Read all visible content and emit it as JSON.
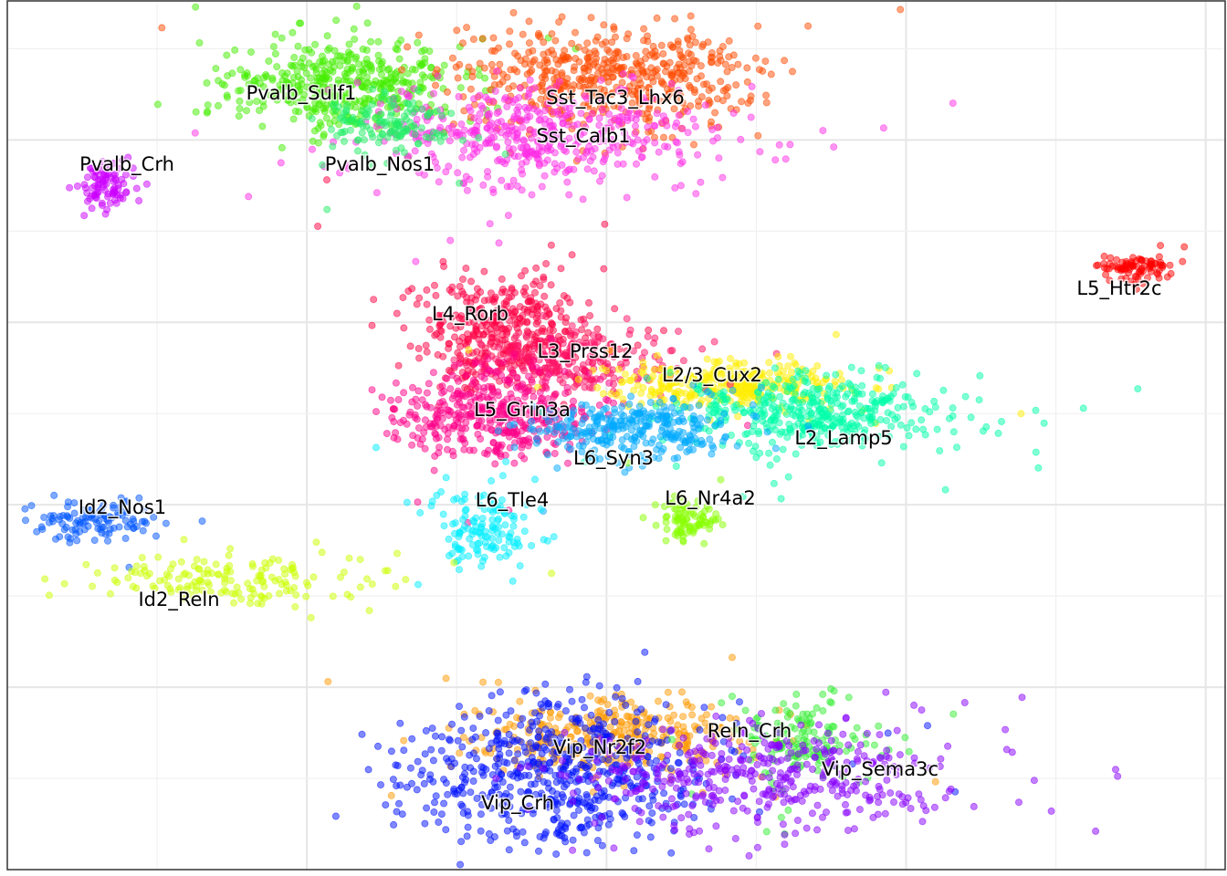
{
  "chart_data": {
    "type": "scatter",
    "title": "",
    "xlabel": "",
    "ylabel": "",
    "xlim": [
      0,
      100
    ],
    "ylim": [
      0,
      100
    ],
    "grid": true,
    "legend": "none",
    "clusters": [
      {
        "name": "Pvalb_Sulf1",
        "color": "#44ee00",
        "center": [
          27.3,
          90.5
        ],
        "spread": [
          4.5,
          2.6
        ],
        "count": 420
      },
      {
        "name": "Sst_Tac3_Lhx6",
        "color": "#ff4a00",
        "center": [
          49.5,
          91.0
        ],
        "spread": [
          6.0,
          3.0
        ],
        "count": 520
      },
      {
        "name": "Sst_Calb1",
        "color": "#ff2ee6",
        "center": [
          43.5,
          84.6
        ],
        "spread": [
          7.0,
          2.8
        ],
        "count": 480
      },
      {
        "name": "Pvalb_Nos1",
        "color": "#22ee66",
        "center": [
          31.5,
          85.8
        ],
        "spread": [
          2.8,
          1.7
        ],
        "count": 140
      },
      {
        "name": "Pvalb_Crh",
        "color": "#cc00ff",
        "center": [
          7.9,
          78.5
        ],
        "spread": [
          1.0,
          1.2
        ],
        "count": 90
      },
      {
        "name": "L5_Htr2c",
        "color": "#ff0000",
        "center": [
          93.0,
          69.2
        ],
        "spread": [
          1.4,
          0.8
        ],
        "count": 90
      },
      {
        "name": "L4_Rorb",
        "color": "#ff0044",
        "center": [
          41.0,
          61.8
        ],
        "spread": [
          3.6,
          3.2
        ],
        "count": 420
      },
      {
        "name": "L3_Prss12",
        "color": "#ff1166",
        "center": [
          46.5,
          58.6
        ],
        "spread": [
          3.5,
          1.8
        ],
        "count": 220
      },
      {
        "name": "L2/3_Cux2",
        "color": "#ffee00",
        "center": [
          58.5,
          55.6
        ],
        "spread": [
          5.0,
          1.4
        ],
        "count": 330
      },
      {
        "name": "L5_Grin3a",
        "color": "#ff0088",
        "center": [
          40.0,
          52.4
        ],
        "spread": [
          3.8,
          2.6
        ],
        "count": 420
      },
      {
        "name": "L2_Lamp5",
        "color": "#00ffaa",
        "center": [
          66.0,
          52.5
        ],
        "spread": [
          5.5,
          2.2
        ],
        "count": 420
      },
      {
        "name": "L6_Syn3",
        "color": "#00aaff",
        "center": [
          51.5,
          50.5
        ],
        "spread": [
          4.0,
          1.6
        ],
        "count": 300
      },
      {
        "name": "L6_Nr4a2",
        "color": "#88ff00",
        "center": [
          55.9,
          40.2
        ],
        "spread": [
          1.2,
          1.2
        ],
        "count": 90
      },
      {
        "name": "L6_Tle4",
        "color": "#00eeff",
        "center": [
          38.9,
          39.4
        ],
        "spread": [
          2.0,
          2.4
        ],
        "count": 140
      },
      {
        "name": "Id2_Nos1",
        "color": "#0055ff",
        "center": [
          7.6,
          40.0
        ],
        "spread": [
          2.6,
          1.2
        ],
        "count": 110
      },
      {
        "name": "Id2_Reln",
        "color": "#ccff00",
        "center": [
          18.5,
          33.4
        ],
        "spread": [
          5.5,
          1.6
        ],
        "count": 160
      },
      {
        "name": "Vip_Nr2f2",
        "color": "#ff9900",
        "center": [
          49.0,
          15.0
        ],
        "spread": [
          5.5,
          2.2
        ],
        "count": 360
      },
      {
        "name": "Vip_Crh",
        "color": "#0011ff",
        "center": [
          45.0,
          11.0
        ],
        "spread": [
          6.0,
          4.2
        ],
        "count": 600
      },
      {
        "name": "Reln_Crh",
        "color": "#33ee33",
        "center": [
          65.0,
          14.8
        ],
        "spread": [
          2.6,
          2.4
        ],
        "count": 150
      },
      {
        "name": "Vip_Sema3c",
        "color": "#8800ff",
        "center": [
          62.5,
          10.5
        ],
        "spread": [
          8.0,
          3.0
        ],
        "count": 420
      }
    ],
    "cluster_labels": [
      "Pvalb_Sulf1",
      "Sst_Tac3_Lhx6",
      "Sst_Calb1",
      "Pvalb_Nos1",
      "Pvalb_Crh",
      "L5_Htr2c",
      "L4_Rorb",
      "L3_Prss12",
      "L2/3_Cux2",
      "L5_Grin3a",
      "L2_Lamp5",
      "L6_Syn3",
      "L6_Nr4a2",
      "L6_Tle4",
      "Id2_Nos1",
      "Id2_Reln",
      "Vip_Nr2f2",
      "Vip_Crh",
      "Reln_Crh",
      "Vip_Sema3c"
    ]
  }
}
